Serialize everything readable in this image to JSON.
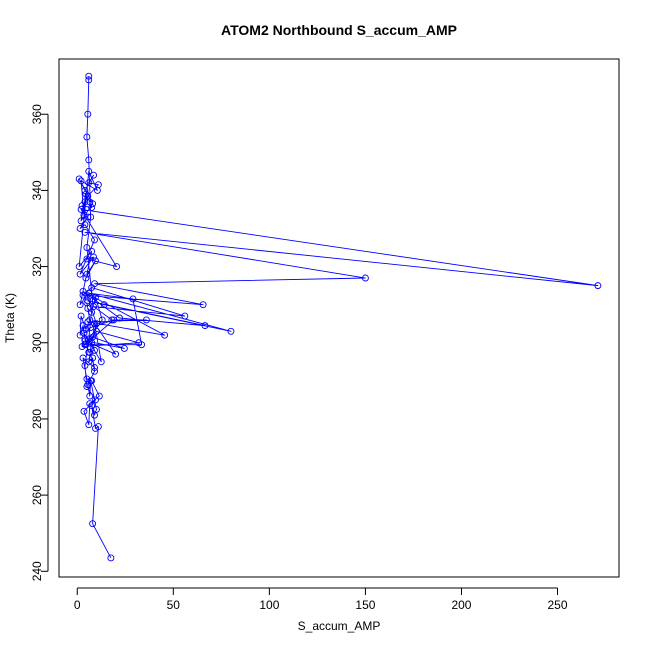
{
  "chart_data": {
    "type": "line",
    "title": "ATOM2 Northbound S_accum_AMP",
    "xlabel": "S_accum_AMP",
    "ylabel": "Theta (K)",
    "xlim": [
      -9.5,
      282
    ],
    "ylim": [
      238.5,
      374.5
    ],
    "xticks": [
      0,
      50,
      100,
      150,
      200,
      250
    ],
    "yticks": [
      240,
      260,
      280,
      300,
      320,
      340,
      360
    ],
    "grid": false,
    "legend": "none",
    "markers": "open circles connected by lines",
    "color": "#0000ff",
    "series": [
      {
        "x": [
          17.5,
          8.0,
          11.0,
          9.5,
          7.5,
          9.0,
          10.0,
          7.0,
          6.5,
          5.5,
          9.0,
          8.0,
          6.0,
          7.5,
          9.0,
          6.0,
          4.0,
          3.0,
          1.5,
          2.0,
          4.5,
          6.5,
          5.0,
          5.5,
          7.5,
          9.5,
          13.0,
          4.0,
          19.0,
          7.0,
          3.5,
          12.5,
          9.0,
          20.0,
          4.0,
          24.5,
          8.0,
          2.5,
          32.0,
          10.0,
          4.5,
          33.5,
          29.0,
          6.0,
          80.0,
          14.0,
          5.5,
          66.5,
          22.0,
          3.0,
          45.5,
          5.5,
          36.0,
          18.0,
          8.5,
          56.0,
          7.5,
          3.0,
          65.5,
          9.0,
          150.0,
          4.0,
          271.0,
          2.0,
          20.5,
          5.0,
          8.5,
          1.5,
          9.0,
          4.0,
          1.5,
          5.5,
          2.5,
          7.5,
          6.5,
          4.5,
          2.0,
          8.0,
          1.0,
          4.0,
          8.5,
          6.0,
          11.0,
          5.5,
          4.0,
          3.5,
          2.0,
          10.5,
          6.0,
          1.0,
          7.5,
          5.0,
          9.5,
          4.5,
          1.5,
          5.0,
          10.0,
          6.5,
          9.0,
          3.0,
          5.0,
          7.5,
          11.5,
          6.5,
          6.0,
          3.5,
          9.5,
          5.0,
          4.0,
          6.0,
          8.0,
          5.0,
          7.0,
          6.0,
          5.0,
          5.5,
          6.0,
          6.0
        ],
        "y": [
          243.5,
          252.5,
          278.0,
          277.5,
          283.5,
          281.0,
          282.5,
          290.0,
          286.0,
          289.0,
          292.5,
          296.0,
          295.0,
          300.0,
          298.0,
          297.5,
          301.0,
          304.5,
          302.0,
          307.0,
          303.5,
          306.0,
          310.5,
          309.0,
          308.0,
          312.0,
          306.0,
          299.5,
          306.0,
          304.0,
          302.5,
          295.0,
          305.0,
          297.0,
          300.5,
          298.5,
          301.5,
          299.0,
          300.0,
          303.0,
          299.5,
          299.5,
          311.5,
          313.0,
          303.0,
          310.0,
          311.0,
          304.5,
          306.5,
          313.5,
          302.0,
          305.5,
          306.0,
          306.0,
          309.5,
          307.0,
          314.5,
          312.5,
          310.0,
          315.5,
          317.0,
          329.0,
          315.0,
          335.0,
          320.0,
          322.0,
          322.5,
          318.0,
          327.0,
          331.0,
          330.0,
          333.0,
          336.0,
          335.5,
          337.0,
          339.0,
          332.0,
          336.5,
          343.0,
          340.0,
          344.0,
          342.0,
          341.5,
          338.5,
          337.0,
          333.5,
          342.5,
          340.0,
          345.0,
          320.0,
          324.0,
          318.0,
          321.5,
          317.0,
          310.0,
          312.5,
          305.0,
          297.5,
          293.5,
          296.0,
          290.5,
          290.0,
          286.0,
          284.0,
          278.5,
          282.0,
          285.0,
          288.5,
          294.0,
          301.0,
          311.0,
          325.0,
          333.0,
          348.0,
          354.0,
          360.0,
          369.0,
          370.0
        ]
      }
    ]
  }
}
